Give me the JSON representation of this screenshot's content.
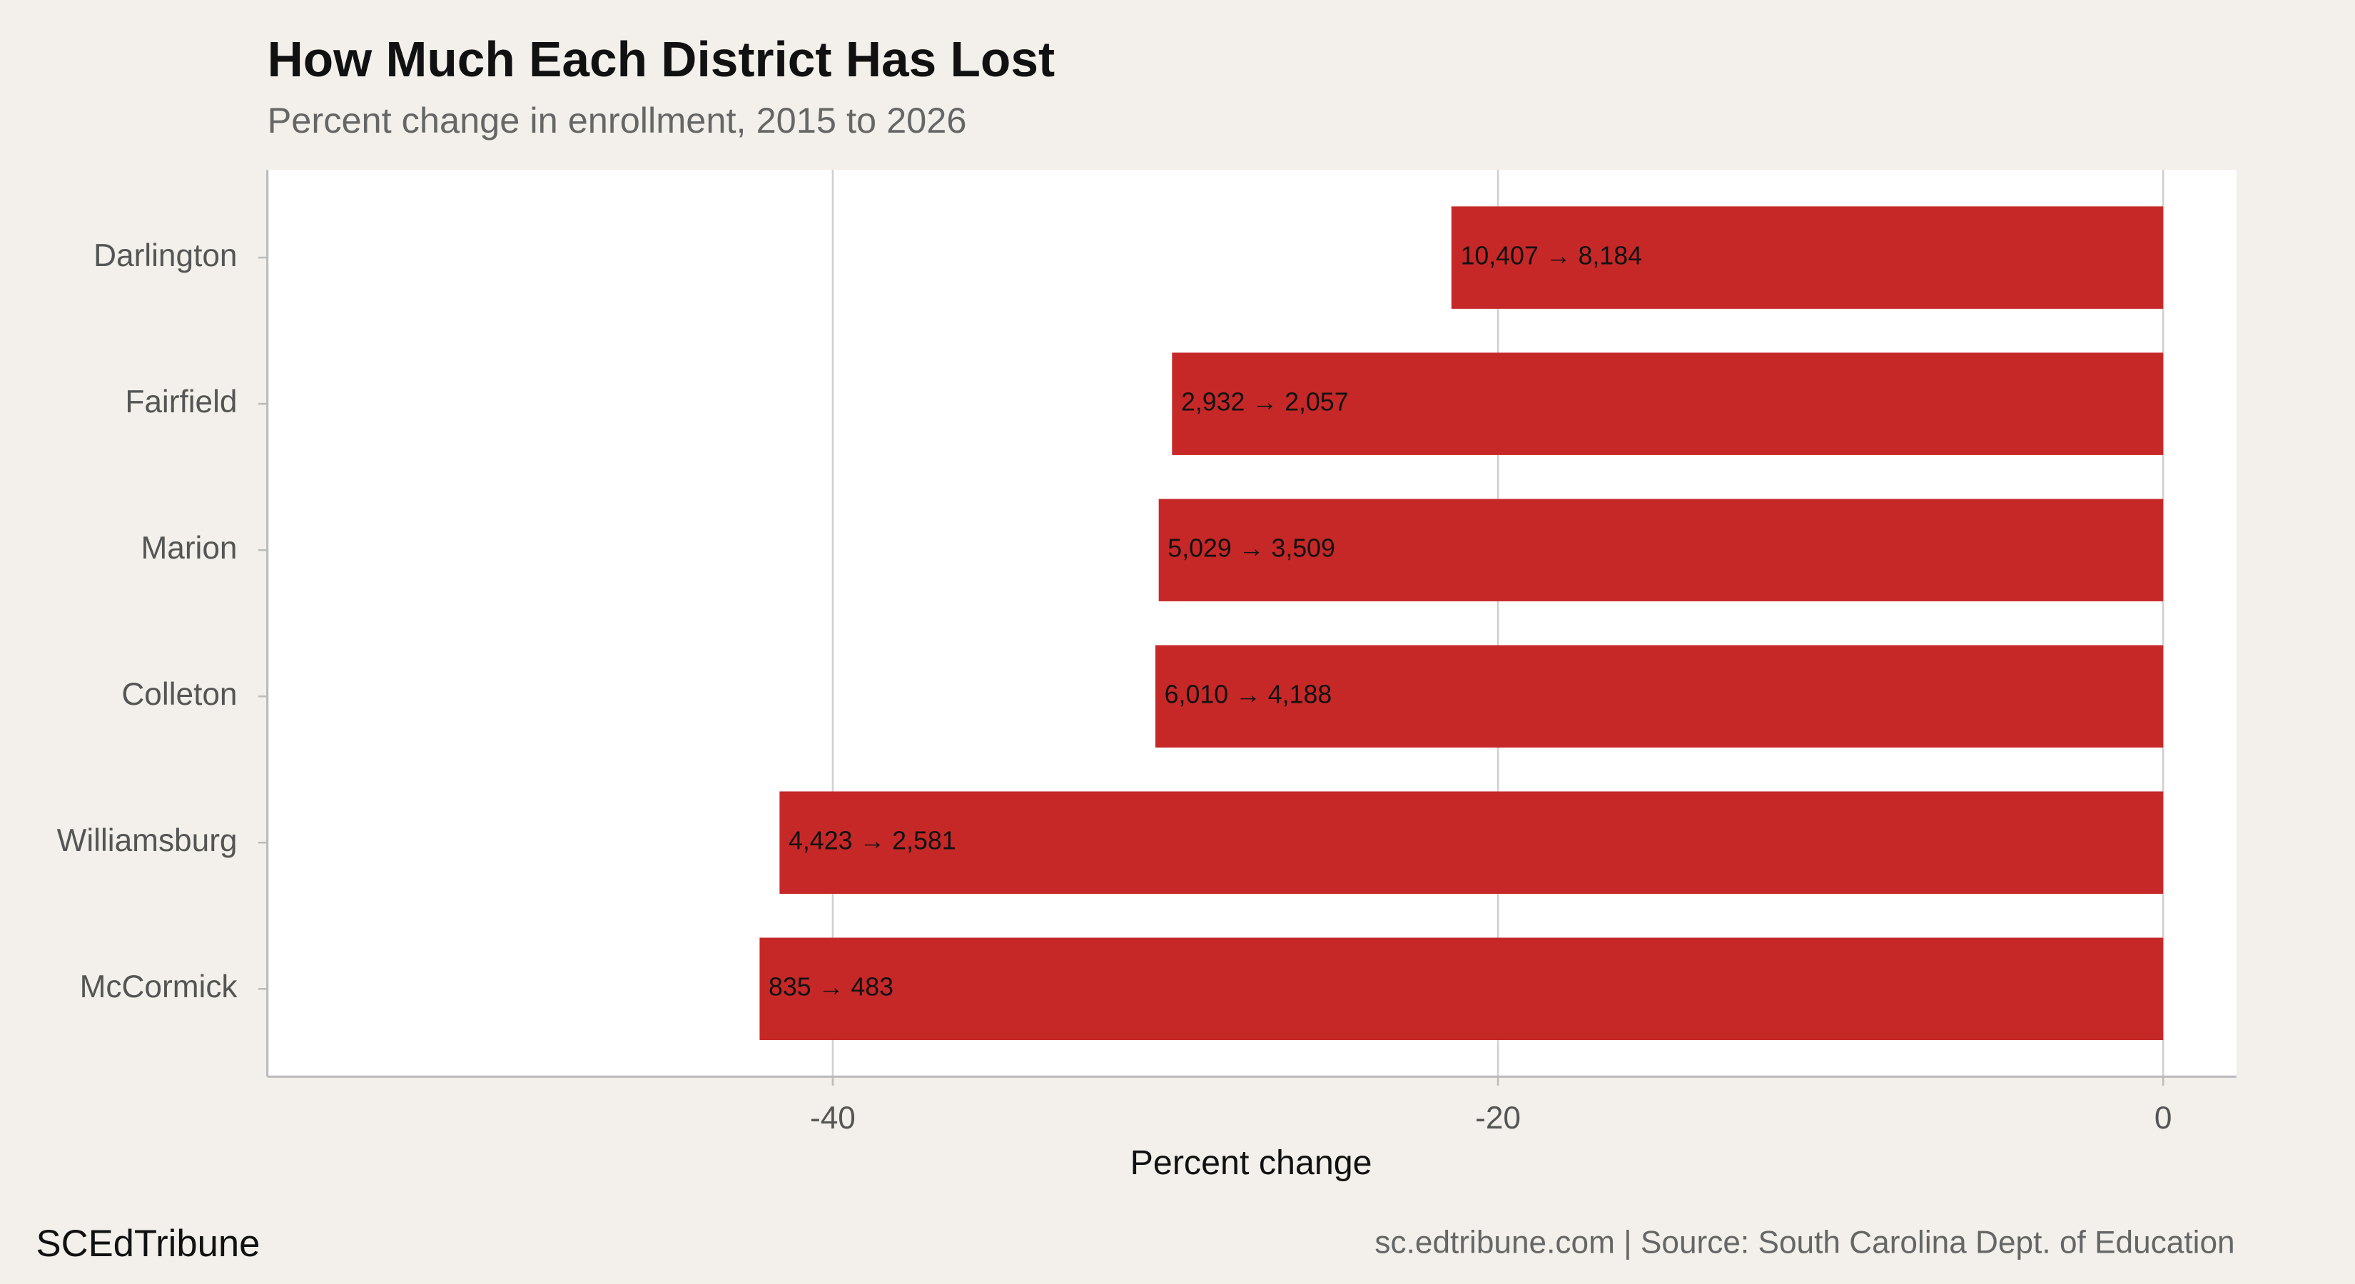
{
  "chart_data": {
    "type": "bar",
    "orientation": "horizontal",
    "title": "How Much Each District Has Lost",
    "subtitle": "Percent change in enrollment, 2015 to 2026",
    "x_label": "Percent change",
    "categories": [
      "Darlington",
      "Fairfield",
      "Marion",
      "Colleton",
      "Williamsburg",
      "McCormick"
    ],
    "values": [
      -21.4,
      -29.8,
      -30.2,
      -30.3,
      -41.6,
      -42.2
    ],
    "bar_labels": [
      "10,407 → 8,184",
      "2,932 → 2,057",
      "5,029 → 3,509",
      "6,010 → 4,188",
      "4,423 → 2,581",
      "835 → 483"
    ],
    "color": "#c62828",
    "xlim": [
      -57,
      2.2
    ],
    "xticks": [
      -40,
      -20,
      0
    ],
    "grid": true,
    "brand": "SCEdTribune",
    "source": "sc.edtribune.com | Source: South Carolina Dept. of Education"
  }
}
